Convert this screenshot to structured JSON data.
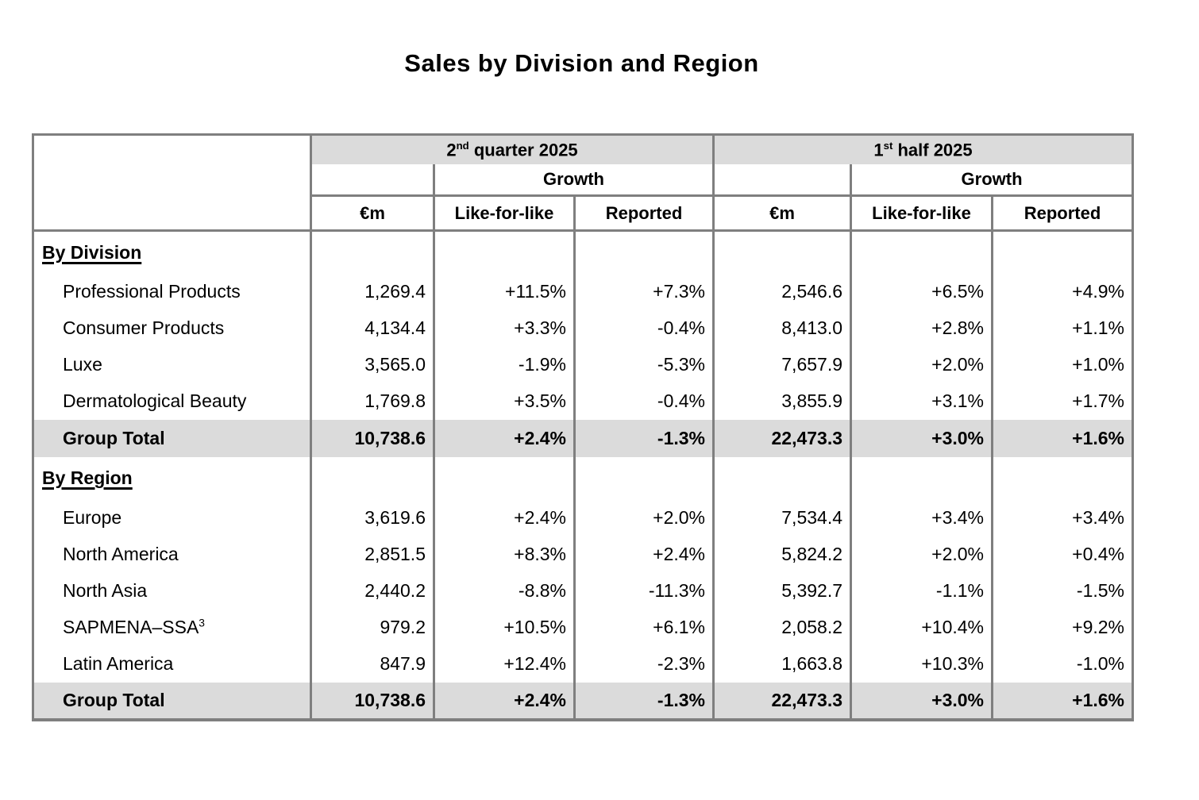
{
  "title": "Sales by Division and Region",
  "colors": {
    "band_gray": "#dbdbdb",
    "border_gray": "#7f7f7f",
    "text": "#000000",
    "background": "#ffffff"
  },
  "headers": {
    "q2": {
      "prefix": "2",
      "sup": "nd",
      "suffix": " quarter 2025"
    },
    "h1": {
      "prefix": "1",
      "sup": "st",
      "suffix": " half 2025"
    },
    "growth": "Growth",
    "eur_m": "€m",
    "lfl": "Like-for-like",
    "reported": "Reported"
  },
  "sections": [
    {
      "heading": "By Division",
      "rows": [
        {
          "label": "Professional Products",
          "values": [
            "1,269.4",
            "+11.5%",
            "+7.3%",
            "2,546.6",
            "+6.5%",
            "+4.9%"
          ]
        },
        {
          "label": "Consumer Products",
          "values": [
            "4,134.4",
            "+3.3%",
            "-0.4%",
            "8,413.0",
            "+2.8%",
            "+1.1%"
          ]
        },
        {
          "label": "Luxe",
          "values": [
            "3,565.0",
            "-1.9%",
            "-5.3%",
            "7,657.9",
            "+2.0%",
            "+1.0%"
          ]
        },
        {
          "label": "Dermatological Beauty",
          "values": [
            "1,769.8",
            "+3.5%",
            "-0.4%",
            "3,855.9",
            "+3.1%",
            "+1.7%"
          ]
        }
      ],
      "total": {
        "label": "Group Total",
        "values": [
          "10,738.6",
          "+2.4%",
          "-1.3%",
          "22,473.3",
          "+3.0%",
          "+1.6%"
        ]
      }
    },
    {
      "heading": "By Region",
      "rows": [
        {
          "label": "Europe",
          "values": [
            "3,619.6",
            "+2.4%",
            "+2.0%",
            "7,534.4",
            "+3.4%",
            "+3.4%"
          ]
        },
        {
          "label": "North America",
          "values": [
            "2,851.5",
            "+8.3%",
            "+2.4%",
            "5,824.2",
            "+2.0%",
            "+0.4%"
          ]
        },
        {
          "label": "North Asia",
          "values": [
            "2,440.2",
            "-8.8%",
            "-11.3%",
            "5,392.7",
            "-1.1%",
            "-1.5%"
          ]
        },
        {
          "label": "SAPMENA–SSA",
          "label_sup": "3",
          "values": [
            "979.2",
            "+10.5%",
            "+6.1%",
            "2,058.2",
            "+10.4%",
            "+9.2%"
          ]
        },
        {
          "label": "Latin America",
          "values": [
            "847.9",
            "+12.4%",
            "-2.3%",
            "1,663.8",
            "+10.3%",
            "-1.0%"
          ]
        }
      ],
      "total": {
        "label": "Group Total",
        "values": [
          "10,738.6",
          "+2.4%",
          "-1.3%",
          "22,473.3",
          "+3.0%",
          "+1.6%"
        ]
      }
    }
  ]
}
